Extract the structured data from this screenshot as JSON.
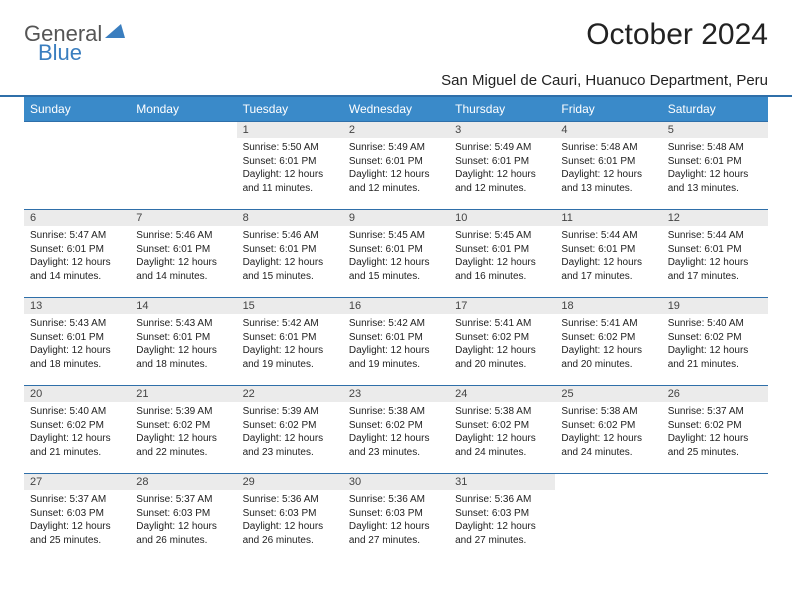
{
  "logo": {
    "text1": "General",
    "text2": "Blue"
  },
  "title": "October 2024",
  "location": "San Miguel de Cauri, Huanuco Department, Peru",
  "colors": {
    "header_bg": "#3a8ac9",
    "header_text": "#ffffff",
    "rule": "#2f6fa9",
    "daynum_bg": "#ebebeb",
    "body_text": "#222222",
    "logo_gray": "#555555",
    "logo_blue": "#3a7ebf",
    "page_bg": "#ffffff"
  },
  "weekdays": [
    "Sunday",
    "Monday",
    "Tuesday",
    "Wednesday",
    "Thursday",
    "Friday",
    "Saturday"
  ],
  "blanks_before": 2,
  "days": [
    {
      "n": "1",
      "sr": "5:50 AM",
      "ss": "6:01 PM",
      "dl": "12 hours and 11 minutes."
    },
    {
      "n": "2",
      "sr": "5:49 AM",
      "ss": "6:01 PM",
      "dl": "12 hours and 12 minutes."
    },
    {
      "n": "3",
      "sr": "5:49 AM",
      "ss": "6:01 PM",
      "dl": "12 hours and 12 minutes."
    },
    {
      "n": "4",
      "sr": "5:48 AM",
      "ss": "6:01 PM",
      "dl": "12 hours and 13 minutes."
    },
    {
      "n": "5",
      "sr": "5:48 AM",
      "ss": "6:01 PM",
      "dl": "12 hours and 13 minutes."
    },
    {
      "n": "6",
      "sr": "5:47 AM",
      "ss": "6:01 PM",
      "dl": "12 hours and 14 minutes."
    },
    {
      "n": "7",
      "sr": "5:46 AM",
      "ss": "6:01 PM",
      "dl": "12 hours and 14 minutes."
    },
    {
      "n": "8",
      "sr": "5:46 AM",
      "ss": "6:01 PM",
      "dl": "12 hours and 15 minutes."
    },
    {
      "n": "9",
      "sr": "5:45 AM",
      "ss": "6:01 PM",
      "dl": "12 hours and 15 minutes."
    },
    {
      "n": "10",
      "sr": "5:45 AM",
      "ss": "6:01 PM",
      "dl": "12 hours and 16 minutes."
    },
    {
      "n": "11",
      "sr": "5:44 AM",
      "ss": "6:01 PM",
      "dl": "12 hours and 17 minutes."
    },
    {
      "n": "12",
      "sr": "5:44 AM",
      "ss": "6:01 PM",
      "dl": "12 hours and 17 minutes."
    },
    {
      "n": "13",
      "sr": "5:43 AM",
      "ss": "6:01 PM",
      "dl": "12 hours and 18 minutes."
    },
    {
      "n": "14",
      "sr": "5:43 AM",
      "ss": "6:01 PM",
      "dl": "12 hours and 18 minutes."
    },
    {
      "n": "15",
      "sr": "5:42 AM",
      "ss": "6:01 PM",
      "dl": "12 hours and 19 minutes."
    },
    {
      "n": "16",
      "sr": "5:42 AM",
      "ss": "6:01 PM",
      "dl": "12 hours and 19 minutes."
    },
    {
      "n": "17",
      "sr": "5:41 AM",
      "ss": "6:02 PM",
      "dl": "12 hours and 20 minutes."
    },
    {
      "n": "18",
      "sr": "5:41 AM",
      "ss": "6:02 PM",
      "dl": "12 hours and 20 minutes."
    },
    {
      "n": "19",
      "sr": "5:40 AM",
      "ss": "6:02 PM",
      "dl": "12 hours and 21 minutes."
    },
    {
      "n": "20",
      "sr": "5:40 AM",
      "ss": "6:02 PM",
      "dl": "12 hours and 21 minutes."
    },
    {
      "n": "21",
      "sr": "5:39 AM",
      "ss": "6:02 PM",
      "dl": "12 hours and 22 minutes."
    },
    {
      "n": "22",
      "sr": "5:39 AM",
      "ss": "6:02 PM",
      "dl": "12 hours and 23 minutes."
    },
    {
      "n": "23",
      "sr": "5:38 AM",
      "ss": "6:02 PM",
      "dl": "12 hours and 23 minutes."
    },
    {
      "n": "24",
      "sr": "5:38 AM",
      "ss": "6:02 PM",
      "dl": "12 hours and 24 minutes."
    },
    {
      "n": "25",
      "sr": "5:38 AM",
      "ss": "6:02 PM",
      "dl": "12 hours and 24 minutes."
    },
    {
      "n": "26",
      "sr": "5:37 AM",
      "ss": "6:02 PM",
      "dl": "12 hours and 25 minutes."
    },
    {
      "n": "27",
      "sr": "5:37 AM",
      "ss": "6:03 PM",
      "dl": "12 hours and 25 minutes."
    },
    {
      "n": "28",
      "sr": "5:37 AM",
      "ss": "6:03 PM",
      "dl": "12 hours and 26 minutes."
    },
    {
      "n": "29",
      "sr": "5:36 AM",
      "ss": "6:03 PM",
      "dl": "12 hours and 26 minutes."
    },
    {
      "n": "30",
      "sr": "5:36 AM",
      "ss": "6:03 PM",
      "dl": "12 hours and 27 minutes."
    },
    {
      "n": "31",
      "sr": "5:36 AM",
      "ss": "6:03 PM",
      "dl": "12 hours and 27 minutes."
    }
  ],
  "labels": {
    "sunrise": "Sunrise:",
    "sunset": "Sunset:",
    "daylight": "Daylight:"
  }
}
